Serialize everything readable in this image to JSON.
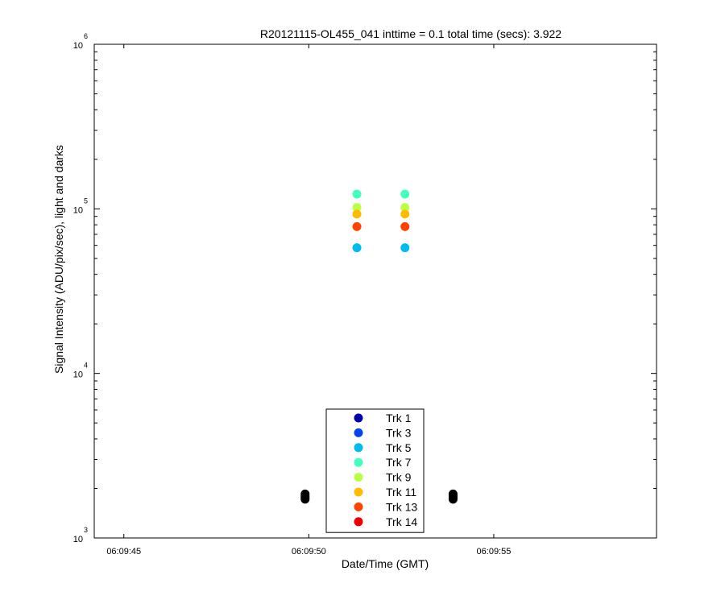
{
  "chart_data": {
    "type": "scatter",
    "title": "R20121115-OL455_041 inttime = 0.1 total time (secs): 3.922",
    "xlabel": "Date/Time (GMT)",
    "ylabel": "Signal Intensity (ADU/pix/sec), light and darks",
    "x_axis": {
      "kind": "time",
      "range": [
        "06:09:44.2",
        "06:09:59.4"
      ],
      "ticks": [
        {
          "value": "06:09:45",
          "label": "06:09:45"
        },
        {
          "value": "06:09:50",
          "label": "06:09:50"
        },
        {
          "value": "06:09:55",
          "label": "06:09:55"
        }
      ]
    },
    "y_axis": {
      "scale": "log",
      "range": [
        1000,
        1000000
      ],
      "ticks": [
        {
          "value": 1000,
          "base": "10",
          "exp": "3"
        },
        {
          "value": 10000,
          "base": "10",
          "exp": "4"
        },
        {
          "value": 100000,
          "base": "10",
          "exp": "5"
        },
        {
          "value": 1000000,
          "base": "10",
          "exp": "6"
        }
      ]
    },
    "grid": false,
    "legend_position": "bottom-center",
    "series": [
      {
        "name": "Trk 1",
        "color": "#0000aa",
        "points": [
          {
            "x": "06:09:51.3",
            "y": 100000
          },
          {
            "x": "06:09:52.6",
            "y": 100000
          }
        ]
      },
      {
        "name": "Trk 3",
        "color": "#0044ee",
        "points": []
      },
      {
        "name": "Trk 5",
        "color": "#00bbee",
        "points": [
          {
            "x": "06:09:51.3",
            "y": 58000
          },
          {
            "x": "06:09:52.6",
            "y": 58000
          }
        ]
      },
      {
        "name": "Trk 7",
        "color": "#44ffbb",
        "points": [
          {
            "x": "06:09:51.3",
            "y": 123000
          },
          {
            "x": "06:09:52.6",
            "y": 123000
          }
        ]
      },
      {
        "name": "Trk 9",
        "color": "#bbff44",
        "points": [
          {
            "x": "06:09:51.3",
            "y": 102000
          },
          {
            "x": "06:09:52.6",
            "y": 102000
          }
        ]
      },
      {
        "name": "Trk 11",
        "color": "#ffbb00",
        "points": [
          {
            "x": "06:09:51.3",
            "y": 93000
          },
          {
            "x": "06:09:52.6",
            "y": 93000
          }
        ]
      },
      {
        "name": "Trk 13",
        "color": "#ff4400",
        "points": [
          {
            "x": "06:09:51.3",
            "y": 78000
          },
          {
            "x": "06:09:52.6",
            "y": 78000
          }
        ]
      },
      {
        "name": "Trk 14",
        "color": "#ee0000",
        "points": []
      }
    ],
    "dark_points": {
      "color": "#000000",
      "points": [
        {
          "x": "06:09:49.9",
          "y": 1850
        },
        {
          "x": "06:09:49.9",
          "y": 1800
        },
        {
          "x": "06:09:49.9",
          "y": 1760
        },
        {
          "x": "06:09:49.9",
          "y": 1720
        },
        {
          "x": "06:09:53.9",
          "y": 1850
        },
        {
          "x": "06:09:53.9",
          "y": 1800
        },
        {
          "x": "06:09:53.9",
          "y": 1760
        },
        {
          "x": "06:09:53.9",
          "y": 1720
        }
      ]
    }
  }
}
